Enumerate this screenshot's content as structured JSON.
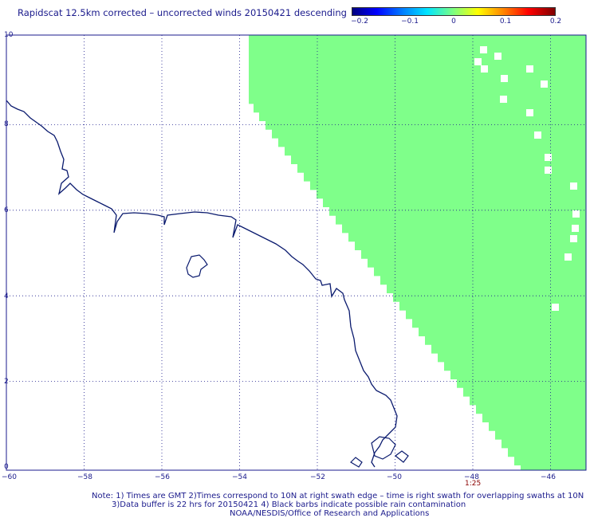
{
  "title": "Rapidscat 12.5km corrected – uncorrected winds 20150421 descending",
  "colorbar": {
    "ticks": [
      "−0.2",
      "−0.1",
      "0",
      "0.1",
      "0.2"
    ],
    "colors": [
      "#00007f",
      "#0000ff",
      "#00e5ff",
      "#7fff7f",
      "#ffff00",
      "#ff8000",
      "#ff0000",
      "#7f0000"
    ]
  },
  "axes": {
    "lon_labels": [
      "−60",
      "−58",
      "−56",
      "−54",
      "−52",
      "−50",
      "−48",
      "−46"
    ],
    "lat_labels": [
      "0",
      "2",
      "4",
      "6",
      "8",
      "10"
    ],
    "lon_range": [
      -60,
      -45.5
    ],
    "lat_range": [
      0,
      10.3
    ]
  },
  "swath": {
    "fill_color": "#7fff8a",
    "time_label": "1:25",
    "time_color": "#8b0000"
  },
  "coast_color": "#0a1a6e",
  "grid_color": "#1a1a8c",
  "notes": {
    "line1": "Note: 1) Times are GMT 2)Times correspond to 10N at right swath edge – time is right swath for overlapping swaths at 10N",
    "line2": "3)Data buffer is 22 hrs for 20150421 4) Black barbs indicate possible rain contamination",
    "line3": "NOAA/NESDIS/Office of Research and Applications"
  }
}
